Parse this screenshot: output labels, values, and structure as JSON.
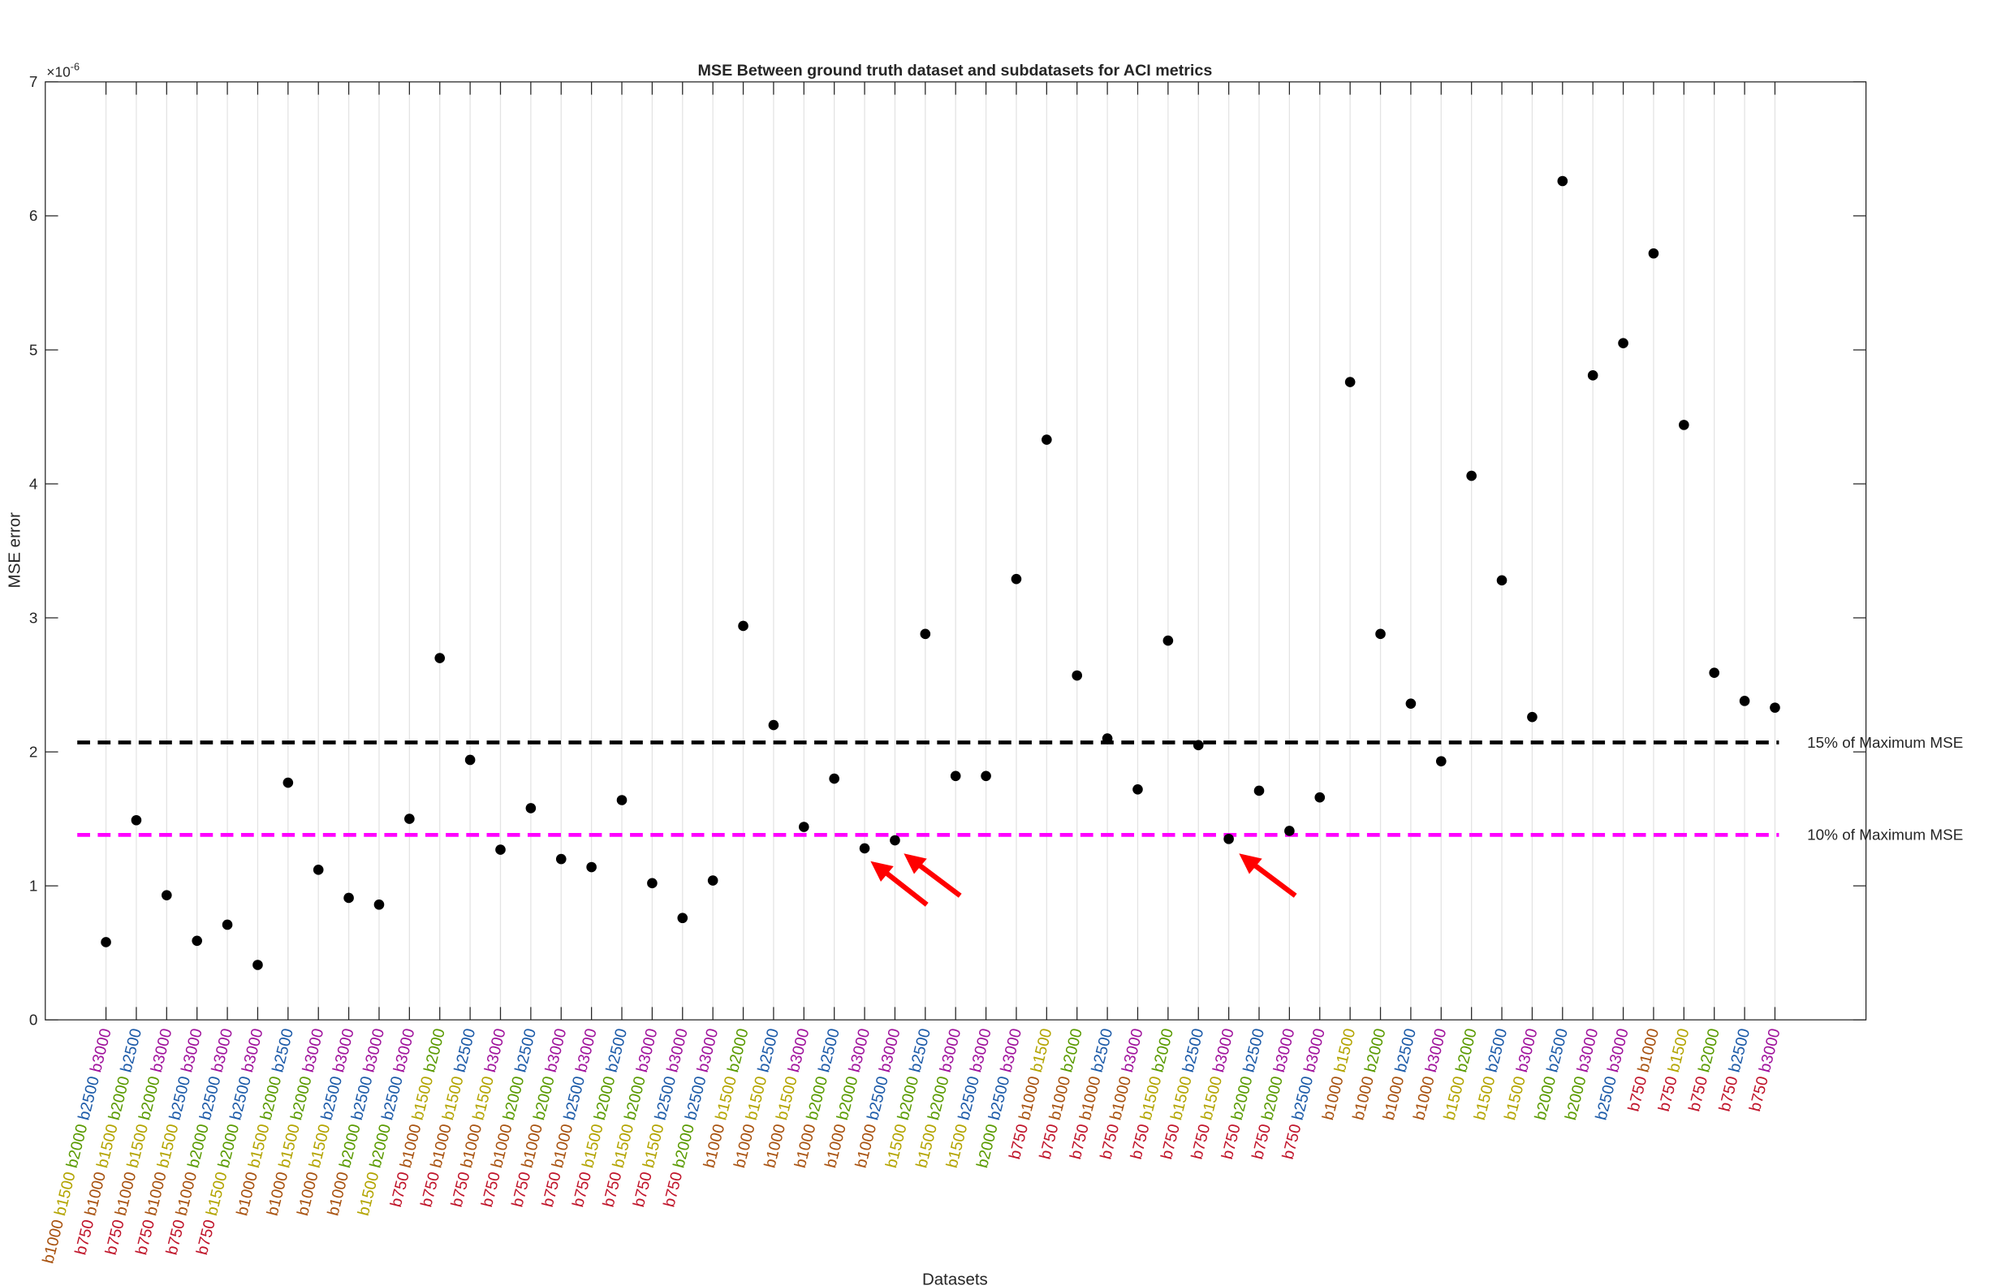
{
  "chart_data": {
    "type": "scatter",
    "title": "MSE Between ground truth dataset and subdatasets for ACI metrics",
    "x_label": "Datasets",
    "y_label": "MSE error",
    "y_multiplier": {
      "base": "×10",
      "exponent": "-6"
    },
    "categories": [
      [
        "b1000",
        "b1500",
        "b2000",
        "b2500",
        "b3000"
      ],
      [
        "b750",
        "b1000",
        "b1500",
        "b2000",
        "b2500"
      ],
      [
        "b750",
        "b1000",
        "b1500",
        "b2000",
        "b3000"
      ],
      [
        "b750",
        "b1000",
        "b1500",
        "b2500",
        "b3000"
      ],
      [
        "b750",
        "b1000",
        "b2000",
        "b2500",
        "b3000"
      ],
      [
        "b750",
        "b1500",
        "b2000",
        "b2500",
        "b3000"
      ],
      [
        "b1000",
        "b1500",
        "b2000",
        "b2500"
      ],
      [
        "b1000",
        "b1500",
        "b2000",
        "b3000"
      ],
      [
        "b1000",
        "b1500",
        "b2500",
        "b3000"
      ],
      [
        "b1000",
        "b2000",
        "b2500",
        "b3000"
      ],
      [
        "b1500",
        "b2000",
        "b2500",
        "b3000"
      ],
      [
        "b750",
        "b1000",
        "b1500",
        "b2000"
      ],
      [
        "b750",
        "b1000",
        "b1500",
        "b2500"
      ],
      [
        "b750",
        "b1000",
        "b1500",
        "b3000"
      ],
      [
        "b750",
        "b1000",
        "b2000",
        "b2500"
      ],
      [
        "b750",
        "b1000",
        "b2000",
        "b3000"
      ],
      [
        "b750",
        "b1000",
        "b2500",
        "b3000"
      ],
      [
        "b750",
        "b1500",
        "b2000",
        "b2500"
      ],
      [
        "b750",
        "b1500",
        "b2000",
        "b3000"
      ],
      [
        "b750",
        "b1500",
        "b2500",
        "b3000"
      ],
      [
        "b750",
        "b2000",
        "b2500",
        "b3000"
      ],
      [
        "b1000",
        "b1500",
        "b2000"
      ],
      [
        "b1000",
        "b1500",
        "b2500"
      ],
      [
        "b1000",
        "b1500",
        "b3000"
      ],
      [
        "b1000",
        "b2000",
        "b2500"
      ],
      [
        "b1000",
        "b2000",
        "b3000"
      ],
      [
        "b1000",
        "b2500",
        "b3000"
      ],
      [
        "b1500",
        "b2000",
        "b2500"
      ],
      [
        "b1500",
        "b2000",
        "b3000"
      ],
      [
        "b1500",
        "b2500",
        "b3000"
      ],
      [
        "b2000",
        "b2500",
        "b3000"
      ],
      [
        "b750",
        "b1000",
        "b1500"
      ],
      [
        "b750",
        "b1000",
        "b2000"
      ],
      [
        "b750",
        "b1000",
        "b2500"
      ],
      [
        "b750",
        "b1000",
        "b3000"
      ],
      [
        "b750",
        "b1500",
        "b2000"
      ],
      [
        "b750",
        "b1500",
        "b2500"
      ],
      [
        "b750",
        "b1500",
        "b3000"
      ],
      [
        "b750",
        "b2000",
        "b2500"
      ],
      [
        "b750",
        "b2000",
        "b3000"
      ],
      [
        "b750",
        "b2500",
        "b3000"
      ],
      [
        "b1000",
        "b1500"
      ],
      [
        "b1000",
        "b2000"
      ],
      [
        "b1000",
        "b2500"
      ],
      [
        "b1000",
        "b3000"
      ],
      [
        "b1500",
        "b2000"
      ],
      [
        "b1500",
        "b2500"
      ],
      [
        "b1500",
        "b3000"
      ],
      [
        "b2000",
        "b2500"
      ],
      [
        "b2000",
        "b3000"
      ],
      [
        "b2500",
        "b3000"
      ],
      [
        "b750",
        "b1000"
      ],
      [
        "b750",
        "b1500"
      ],
      [
        "b750",
        "b2000"
      ],
      [
        "b750",
        "b2500"
      ],
      [
        "b750",
        "b3000"
      ]
    ],
    "values": [
      0.58,
      1.49,
      0.93,
      0.59,
      0.71,
      0.41,
      1.77,
      1.12,
      0.91,
      0.86,
      1.5,
      2.7,
      1.94,
      1.27,
      1.58,
      1.2,
      1.14,
      1.64,
      1.02,
      0.76,
      1.04,
      2.94,
      2.2,
      1.44,
      1.8,
      1.28,
      1.34,
      2.88,
      1.82,
      1.82,
      3.29,
      4.33,
      2.57,
      2.1,
      1.72,
      2.83,
      2.05,
      1.35,
      1.71,
      1.41,
      1.66,
      4.76,
      2.88,
      2.36,
      1.93,
      4.06,
      3.28,
      2.26,
      6.26,
      4.81,
      5.05,
      5.72,
      4.44,
      2.59,
      2.38,
      2.33
    ],
    "color": "#000000",
    "token_colors": {
      "b750": "#c0142a",
      "b1000": "#a8520f",
      "b1500": "#b3a400",
      "b2000": "#5a9a00",
      "b2500": "#1c5aa8",
      "b3000": "#a0139c"
    },
    "ylim": [
      0,
      7
    ],
    "yticks": [
      0,
      1,
      2,
      3,
      4,
      5,
      6,
      7
    ],
    "grid": true,
    "reference_lines": [
      {
        "label": "15% of Maximum MSE",
        "value": 2.07,
        "color": "#000000"
      },
      {
        "label": "10% of Maximum MSE",
        "value": 1.38,
        "color": "#ff00ff"
      }
    ]
  }
}
